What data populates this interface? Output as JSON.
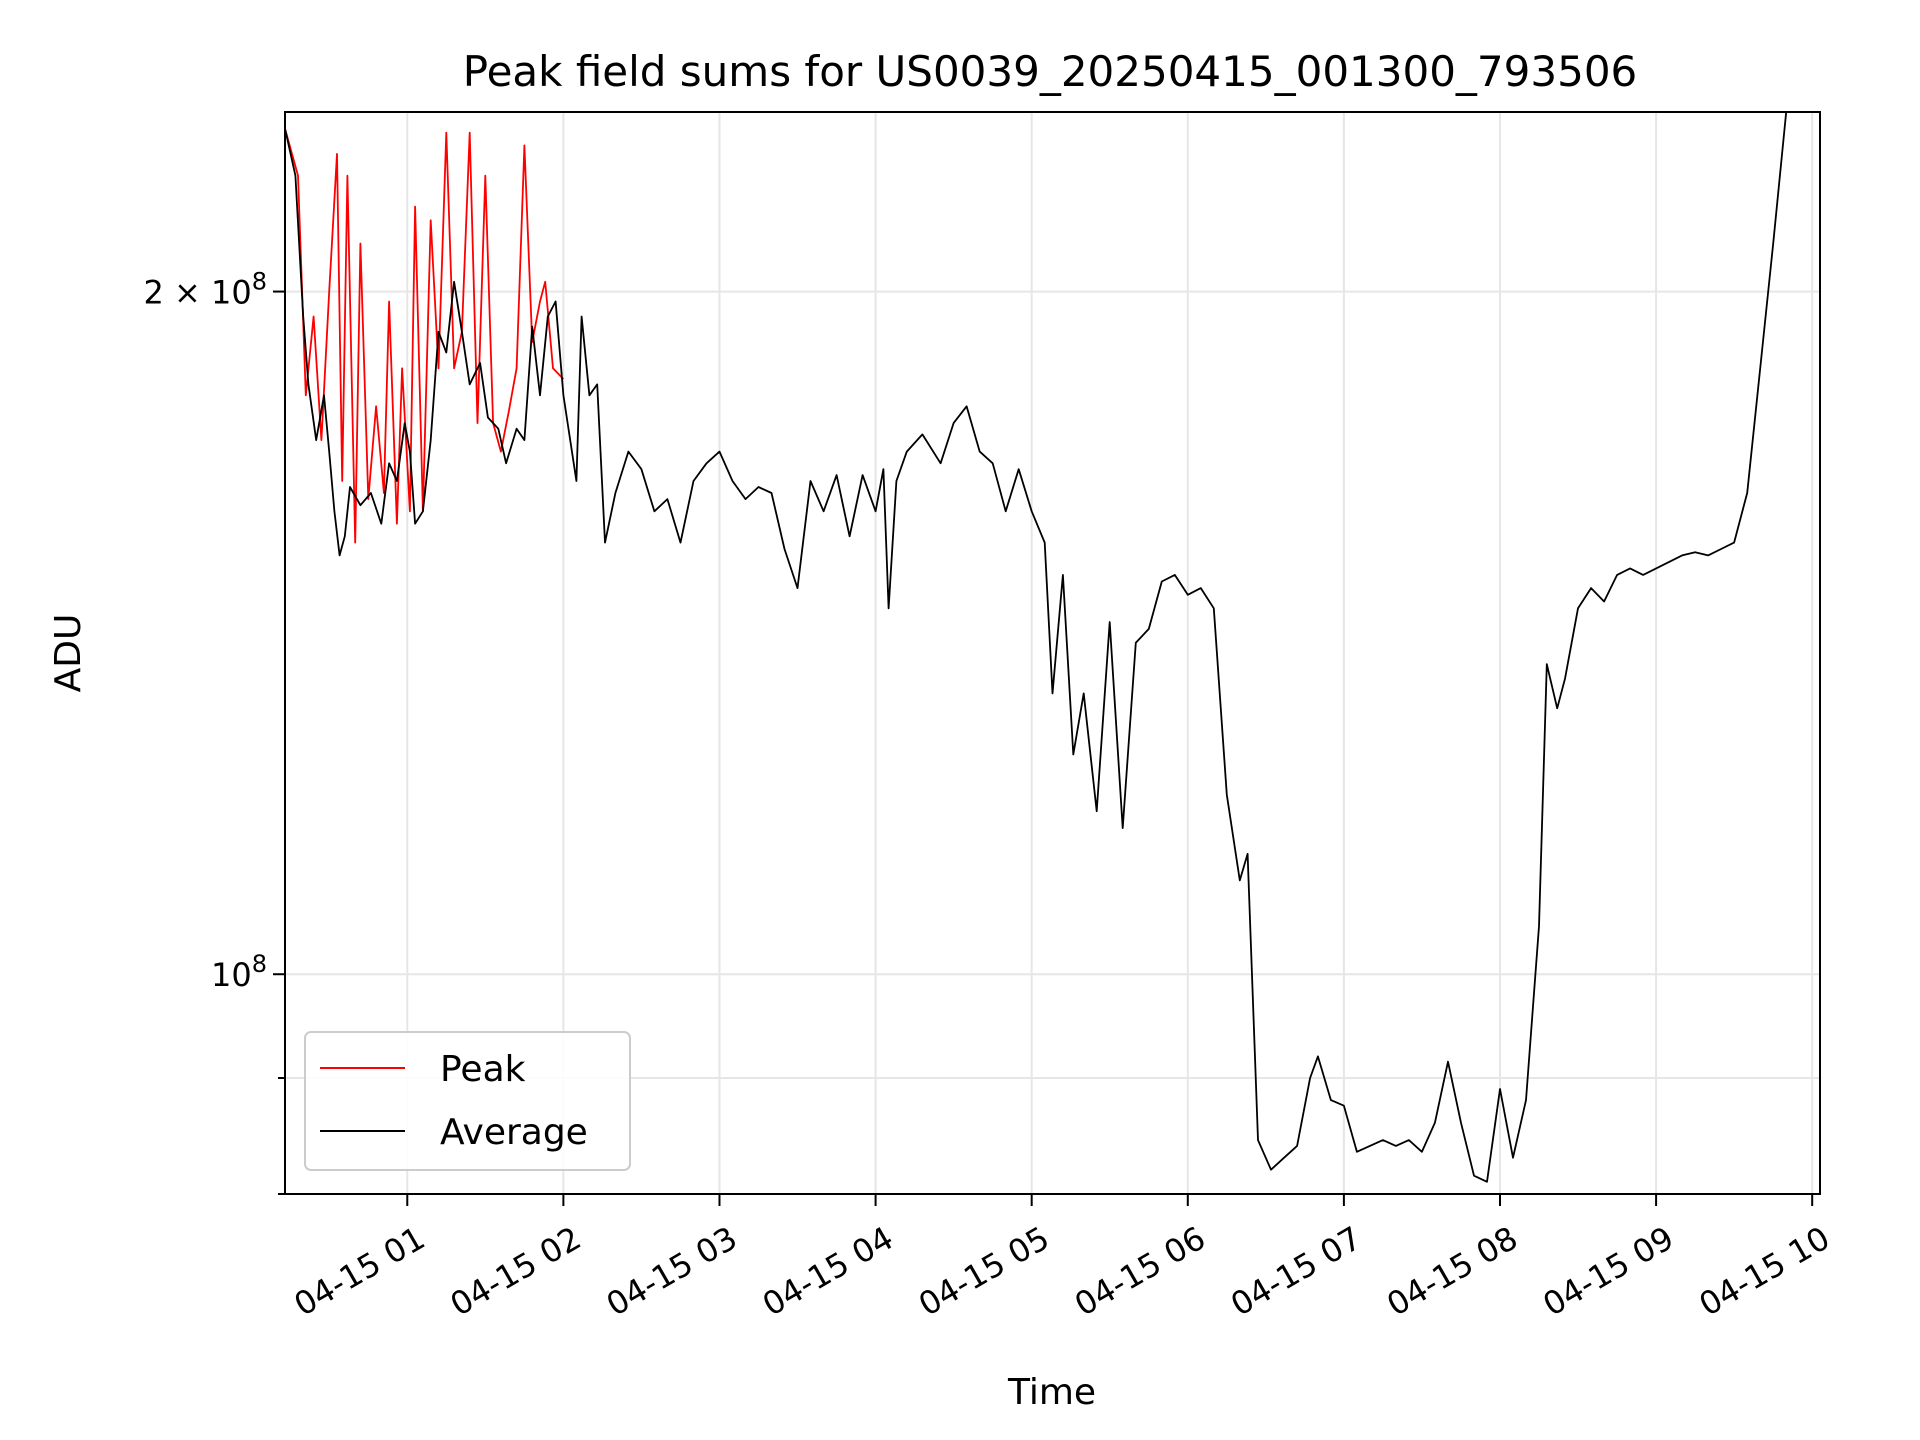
{
  "chart_data": {
    "type": "line",
    "title": "Peak field sums for US0039_20250415_001300_793506",
    "xlabel": "Time",
    "ylabel": "ADU",
    "y_scale": "log",
    "ylim": [
      80000000,
      240000000
    ],
    "xlim": [
      "04-15 00:13",
      "04-15 10:03"
    ],
    "grid": true,
    "legend_position": "lower-left",
    "x_ticks": [
      "04-15 01",
      "04-15 02",
      "04-15 03",
      "04-15 04",
      "04-15 05",
      "04-15 06",
      "04-15 07",
      "04-15 08",
      "04-15 09",
      "04-15 10"
    ],
    "y_ticks": [
      {
        "value": 200000000,
        "mantissa": "2",
        "times": "×",
        "base": "10",
        "exp": "8"
      },
      {
        "value": 100000000,
        "mantissa": "",
        "times": "",
        "base": "10",
        "exp": "8"
      }
    ],
    "series": [
      {
        "name": "Peak",
        "color": "#ff0000",
        "points": [
          [
            "04-15 00:13",
            236000000
          ],
          [
            "04-15 00:18",
            225000000
          ],
          [
            "04-15 00:21",
            180000000
          ],
          [
            "04-15 00:24",
            195000000
          ],
          [
            "04-15 00:27",
            172000000
          ],
          [
            "04-15 00:30",
            200000000
          ],
          [
            "04-15 00:33",
            230000000
          ],
          [
            "04-15 00:35",
            165000000
          ],
          [
            "04-15 00:37",
            225000000
          ],
          [
            "04-15 00:40",
            155000000
          ],
          [
            "04-15 00:42",
            210000000
          ],
          [
            "04-15 00:45",
            162000000
          ],
          [
            "04-15 00:48",
            178000000
          ],
          [
            "04-15 00:51",
            163000000
          ],
          [
            "04-15 00:53",
            198000000
          ],
          [
            "04-15 00:56",
            158000000
          ],
          [
            "04-15 00:58",
            185000000
          ],
          [
            "04-15 01:01",
            160000000
          ],
          [
            "04-15 01:03",
            218000000
          ],
          [
            "04-15 01:06",
            160000000
          ],
          [
            "04-15 01:09",
            215000000
          ],
          [
            "04-15 01:12",
            185000000
          ],
          [
            "04-15 01:15",
            235000000
          ],
          [
            "04-15 01:18",
            185000000
          ],
          [
            "04-15 01:21",
            192000000
          ],
          [
            "04-15 01:24",
            235000000
          ],
          [
            "04-15 01:27",
            175000000
          ],
          [
            "04-15 01:30",
            225000000
          ],
          [
            "04-15 01:33",
            175000000
          ],
          [
            "04-15 01:36",
            170000000
          ],
          [
            "04-15 01:39",
            177000000
          ],
          [
            "04-15 01:42",
            185000000
          ],
          [
            "04-15 01:45",
            232000000
          ],
          [
            "04-15 01:48",
            190000000
          ],
          [
            "04-15 01:51",
            198000000
          ],
          [
            "04-15 01:53",
            202000000
          ],
          [
            "04-15 01:56",
            185000000
          ],
          [
            "04-15 02:00",
            183000000
          ]
        ]
      },
      {
        "name": "Average",
        "color": "#000000",
        "points": [
          [
            "04-15 00:13",
            236000000
          ],
          [
            "04-15 00:17",
            225000000
          ],
          [
            "04-15 00:20",
            195000000
          ],
          [
            "04-15 00:22",
            182000000
          ],
          [
            "04-15 00:25",
            172000000
          ],
          [
            "04-15 00:28",
            180000000
          ],
          [
            "04-15 00:30",
            170000000
          ],
          [
            "04-15 00:32",
            160000000
          ],
          [
            "04-15 00:34",
            153000000
          ],
          [
            "04-15 00:36",
            156000000
          ],
          [
            "04-15 00:38",
            164000000
          ],
          [
            "04-15 00:42",
            161000000
          ],
          [
            "04-15 00:46",
            163000000
          ],
          [
            "04-15 00:50",
            158000000
          ],
          [
            "04-15 00:53",
            168000000
          ],
          [
            "04-15 00:56",
            165000000
          ],
          [
            "04-15 00:59",
            175000000
          ],
          [
            "04-15 01:01",
            170000000
          ],
          [
            "04-15 01:03",
            158000000
          ],
          [
            "04-15 01:06",
            160000000
          ],
          [
            "04-15 01:09",
            172000000
          ],
          [
            "04-15 01:12",
            192000000
          ],
          [
            "04-15 01:15",
            188000000
          ],
          [
            "04-15 01:18",
            202000000
          ],
          [
            "04-15 01:21",
            192000000
          ],
          [
            "04-15 01:24",
            182000000
          ],
          [
            "04-15 01:28",
            186000000
          ],
          [
            "04-15 01:31",
            176000000
          ],
          [
            "04-15 01:35",
            174000000
          ],
          [
            "04-15 01:38",
            168000000
          ],
          [
            "04-15 01:42",
            174000000
          ],
          [
            "04-15 01:45",
            172000000
          ],
          [
            "04-15 01:48",
            193000000
          ],
          [
            "04-15 01:51",
            180000000
          ],
          [
            "04-15 01:54",
            195000000
          ],
          [
            "04-15 01:57",
            198000000
          ],
          [
            "04-15 02:00",
            180000000
          ],
          [
            "04-15 02:05",
            165000000
          ],
          [
            "04-15 02:07",
            195000000
          ],
          [
            "04-15 02:10",
            180000000
          ],
          [
            "04-15 02:13",
            182000000
          ],
          [
            "04-15 02:16",
            155000000
          ],
          [
            "04-15 02:20",
            163000000
          ],
          [
            "04-15 02:25",
            170000000
          ],
          [
            "04-15 02:30",
            167000000
          ],
          [
            "04-15 02:35",
            160000000
          ],
          [
            "04-15 02:40",
            162000000
          ],
          [
            "04-15 02:45",
            155000000
          ],
          [
            "04-15 02:50",
            165000000
          ],
          [
            "04-15 02:55",
            168000000
          ],
          [
            "04-15 03:00",
            170000000
          ],
          [
            "04-15 03:05",
            165000000
          ],
          [
            "04-15 03:10",
            162000000
          ],
          [
            "04-15 03:15",
            164000000
          ],
          [
            "04-15 03:20",
            163000000
          ],
          [
            "04-15 03:25",
            154000000
          ],
          [
            "04-15 03:30",
            148000000
          ],
          [
            "04-15 03:35",
            165000000
          ],
          [
            "04-15 03:40",
            160000000
          ],
          [
            "04-15 03:45",
            166000000
          ],
          [
            "04-15 03:50",
            156000000
          ],
          [
            "04-15 03:55",
            166000000
          ],
          [
            "04-15 04:00",
            160000000
          ],
          [
            "04-15 04:03",
            167000000
          ],
          [
            "04-15 04:05",
            145000000
          ],
          [
            "04-15 04:08",
            165000000
          ],
          [
            "04-15 04:12",
            170000000
          ],
          [
            "04-15 04:18",
            173000000
          ],
          [
            "04-15 04:25",
            168000000
          ],
          [
            "04-15 04:30",
            175000000
          ],
          [
            "04-15 04:35",
            178000000
          ],
          [
            "04-15 04:40",
            170000000
          ],
          [
            "04-15 04:45",
            168000000
          ],
          [
            "04-15 04:50",
            160000000
          ],
          [
            "04-15 04:55",
            167000000
          ],
          [
            "04-15 05:00",
            160000000
          ],
          [
            "04-15 05:05",
            155000000
          ],
          [
            "04-15 05:08",
            133000000
          ],
          [
            "04-15 05:12",
            150000000
          ],
          [
            "04-15 05:16",
            125000000
          ],
          [
            "04-15 05:20",
            133000000
          ],
          [
            "04-15 05:25",
            118000000
          ],
          [
            "04-15 05:30",
            143000000
          ],
          [
            "04-15 05:35",
            116000000
          ],
          [
            "04-15 05:40",
            140000000
          ],
          [
            "04-15 05:45",
            142000000
          ],
          [
            "04-15 05:50",
            149000000
          ],
          [
            "04-15 05:55",
            150000000
          ],
          [
            "04-15 06:00",
            147000000
          ],
          [
            "04-15 06:05",
            148000000
          ],
          [
            "04-15 06:10",
            145000000
          ],
          [
            "04-15 06:15",
            120000000
          ],
          [
            "04-15 06:20",
            110000000
          ],
          [
            "04-15 06:23",
            113000000
          ],
          [
            "04-15 06:27",
            84500000
          ],
          [
            "04-15 06:32",
            82000000
          ],
          [
            "04-15 06:37",
            83000000
          ],
          [
            "04-15 06:42",
            84000000
          ],
          [
            "04-15 06:47",
            90000000
          ],
          [
            "04-15 06:50",
            92000000
          ],
          [
            "04-15 06:55",
            88000000
          ],
          [
            "04-15 07:00",
            87500000
          ],
          [
            "04-15 07:05",
            83500000
          ],
          [
            "04-15 07:10",
            84000000
          ],
          [
            "04-15 07:15",
            84500000
          ],
          [
            "04-15 07:20",
            84000000
          ],
          [
            "04-15 07:25",
            84500000
          ],
          [
            "04-15 07:30",
            83500000
          ],
          [
            "04-15 07:35",
            86000000
          ],
          [
            "04-15 07:40",
            91500000
          ],
          [
            "04-15 07:45",
            86000000
          ],
          [
            "04-15 07:50",
            81500000
          ],
          [
            "04-15 07:55",
            81000000
          ],
          [
            "04-15 08:00",
            89000000
          ],
          [
            "04-15 08:05",
            83000000
          ],
          [
            "04-15 08:10",
            88000000
          ],
          [
            "04-15 08:15",
            105000000
          ],
          [
            "04-15 08:18",
            137000000
          ],
          [
            "04-15 08:22",
            131000000
          ],
          [
            "04-15 08:25",
            135000000
          ],
          [
            "04-15 08:30",
            145000000
          ],
          [
            "04-15 08:35",
            148000000
          ],
          [
            "04-15 08:40",
            146000000
          ],
          [
            "04-15 08:45",
            150000000
          ],
          [
            "04-15 08:50",
            151000000
          ],
          [
            "04-15 08:55",
            150000000
          ],
          [
            "04-15 09:00",
            151000000
          ],
          [
            "04-15 09:05",
            152000000
          ],
          [
            "04-15 09:10",
            153000000
          ],
          [
            "04-15 09:15",
            153500000
          ],
          [
            "04-15 09:20",
            153000000
          ],
          [
            "04-15 09:25",
            154000000
          ],
          [
            "04-15 09:30",
            155000000
          ],
          [
            "04-15 09:35",
            163000000
          ],
          [
            "04-15 09:40",
            185000000
          ],
          [
            "04-15 09:45",
            210000000
          ],
          [
            "04-15 09:50",
            240000000
          ]
        ]
      }
    ]
  }
}
